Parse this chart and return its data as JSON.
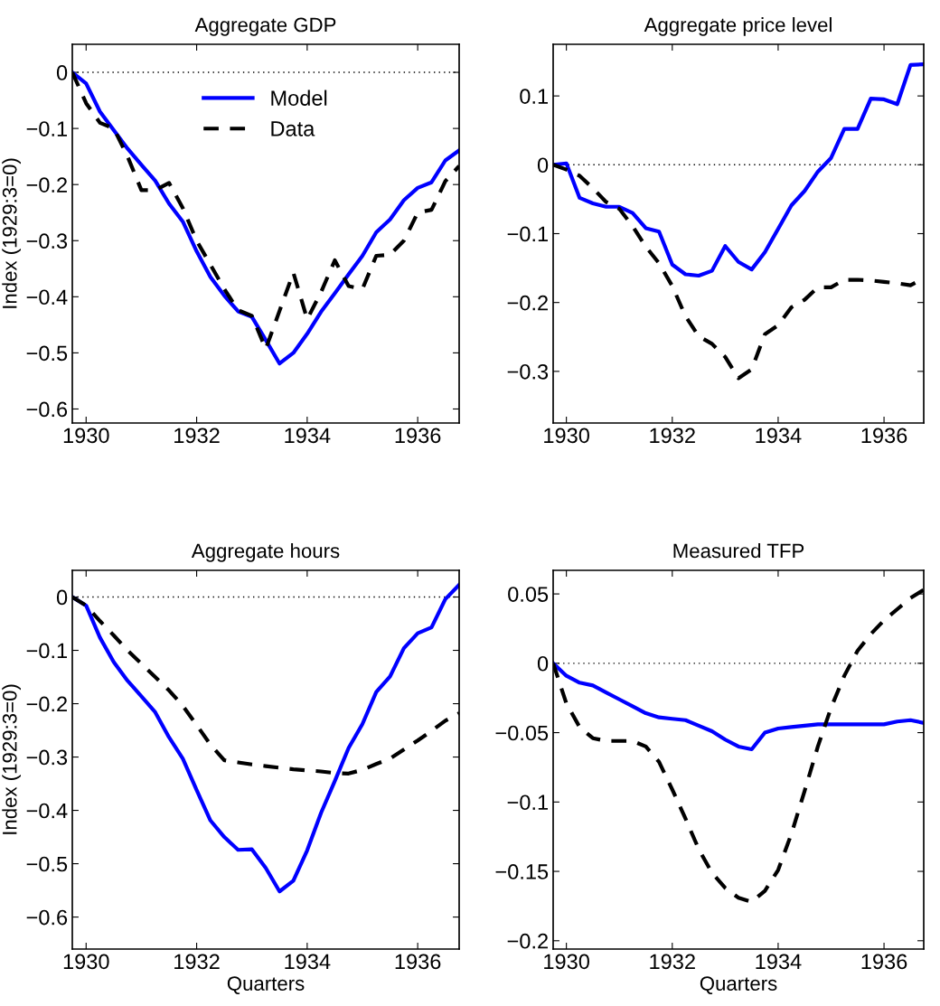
{
  "chart_data": [
    {
      "type": "line",
      "title": "Aggregate GDP",
      "ylabel": "Index (1929:3=0)",
      "x": [
        1929.75,
        1930,
        1930.25,
        1930.5,
        1930.75,
        1931,
        1931.25,
        1931.5,
        1931.75,
        1932,
        1932.25,
        1932.5,
        1932.75,
        1933,
        1933.25,
        1933.5,
        1933.75,
        1934,
        1934.25,
        1934.5,
        1934.75,
        1935,
        1935.25,
        1935.5,
        1935.75,
        1936,
        1936.25,
        1936.5,
        1936.75
      ],
      "series": [
        {
          "name": "Model",
          "color": "#0000ff",
          "line_style": "solid",
          "values": [
            0,
            -0.02,
            -0.07,
            -0.103,
            -0.136,
            -0.165,
            -0.193,
            -0.234,
            -0.266,
            -0.319,
            -0.365,
            -0.398,
            -0.426,
            -0.436,
            -0.477,
            -0.519,
            -0.5,
            -0.466,
            -0.427,
            -0.394,
            -0.36,
            -0.327,
            -0.285,
            -0.262,
            -0.228,
            -0.206,
            -0.196,
            -0.157,
            -0.139
          ]
        },
        {
          "name": "Data",
          "color": "#000000",
          "line_style": "dashed",
          "values": [
            0,
            -0.055,
            -0.09,
            -0.1,
            -0.15,
            -0.21,
            -0.21,
            -0.197,
            -0.242,
            -0.3,
            -0.343,
            -0.386,
            -0.424,
            -0.434,
            -0.493,
            -0.425,
            -0.357,
            -0.44,
            -0.392,
            -0.335,
            -0.381,
            -0.386,
            -0.327,
            -0.325,
            -0.3,
            -0.25,
            -0.245,
            -0.194,
            -0.167
          ]
        }
      ],
      "xlim": [
        1929.75,
        1936.75
      ],
      "xticks": [
        1930,
        1932,
        1934,
        1936
      ],
      "ylim": [
        -0.625,
        0.05
      ],
      "yticks": [
        -0.6,
        -0.5,
        -0.4,
        -0.3,
        -0.2,
        -0.1,
        0
      ],
      "ref_lines": [
        {
          "axis": "y",
          "value": 0,
          "color": "#000000",
          "line_style": "dotted"
        }
      ],
      "legend": "top",
      "grid": false
    },
    {
      "type": "line",
      "title": "Aggregate price level",
      "x": [
        1929.75,
        1930,
        1930.25,
        1930.5,
        1930.75,
        1931,
        1931.25,
        1931.5,
        1931.75,
        1932,
        1932.25,
        1932.5,
        1932.75,
        1933,
        1933.25,
        1933.5,
        1933.75,
        1934,
        1934.25,
        1934.5,
        1934.75,
        1935,
        1935.25,
        1935.5,
        1935.75,
        1936,
        1936.25,
        1936.5,
        1936.75
      ],
      "series": [
        {
          "color": "#0000ff",
          "line_style": "solid",
          "values": [
            0,
            0.002,
            -0.048,
            -0.056,
            -0.061,
            -0.061,
            -0.07,
            -0.092,
            -0.097,
            -0.145,
            -0.159,
            -0.161,
            -0.154,
            -0.118,
            -0.141,
            -0.152,
            -0.127,
            -0.093,
            -0.059,
            -0.038,
            -0.01,
            0.01,
            0.052,
            0.052,
            0.096,
            0.095,
            0.088,
            0.145,
            0.146
          ]
        },
        {
          "color": "#000000",
          "line_style": "dashed",
          "values": [
            0,
            -0.007,
            -0.016,
            -0.034,
            -0.054,
            -0.064,
            -0.089,
            -0.119,
            -0.143,
            -0.176,
            -0.22,
            -0.249,
            -0.26,
            -0.279,
            -0.31,
            -0.297,
            -0.246,
            -0.233,
            -0.207,
            -0.196,
            -0.178,
            -0.178,
            -0.167,
            -0.167,
            -0.168,
            -0.17,
            -0.172,
            -0.175,
            -0.165
          ]
        }
      ],
      "xlim": [
        1929.75,
        1936.75
      ],
      "xticks": [
        1930,
        1932,
        1934,
        1936
      ],
      "ylim": [
        -0.375,
        0.175
      ],
      "yticks": [
        -0.3,
        -0.2,
        -0.1,
        0,
        0.1
      ],
      "ref_lines": [
        {
          "axis": "y",
          "value": 0,
          "color": "#000000",
          "line_style": "dotted"
        }
      ],
      "grid": false
    },
    {
      "type": "line",
      "title": "Aggregate hours",
      "ylabel": "Index (1929:3=0)",
      "xlabel": "Quarters",
      "x": [
        1929.75,
        1930,
        1930.25,
        1930.5,
        1930.75,
        1931,
        1931.25,
        1931.5,
        1931.75,
        1932,
        1932.25,
        1932.5,
        1932.75,
        1933,
        1933.25,
        1933.5,
        1933.75,
        1934,
        1934.25,
        1934.5,
        1934.75,
        1935,
        1935.25,
        1935.5,
        1935.75,
        1936,
        1936.25,
        1936.5,
        1936.75
      ],
      "series": [
        {
          "color": "#0000ff",
          "line_style": "solid",
          "values": [
            0,
            -0.016,
            -0.076,
            -0.122,
            -0.157,
            -0.186,
            -0.216,
            -0.263,
            -0.303,
            -0.362,
            -0.419,
            -0.45,
            -0.474,
            -0.473,
            -0.508,
            -0.552,
            -0.532,
            -0.475,
            -0.405,
            -0.345,
            -0.283,
            -0.238,
            -0.178,
            -0.149,
            -0.096,
            -0.068,
            -0.057,
            -0.004,
            0.023
          ]
        },
        {
          "color": "#000000",
          "line_style": "dashed",
          "values": [
            0,
            -0.016,
            -0.045,
            -0.072,
            -0.1,
            -0.125,
            -0.15,
            -0.175,
            -0.204,
            -0.24,
            -0.277,
            -0.306,
            -0.31,
            -0.314,
            -0.317,
            -0.32,
            -0.323,
            -0.325,
            -0.327,
            -0.33,
            -0.331,
            -0.324,
            -0.313,
            -0.303,
            -0.286,
            -0.269,
            -0.251,
            -0.232,
            -0.218
          ]
        }
      ],
      "xlim": [
        1929.75,
        1936.75
      ],
      "xticks": [
        1930,
        1932,
        1934,
        1936
      ],
      "ylim": [
        -0.66,
        0.05
      ],
      "yticks": [
        -0.6,
        -0.5,
        -0.4,
        -0.3,
        -0.2,
        -0.1,
        0
      ],
      "ref_lines": [
        {
          "axis": "y",
          "value": 0,
          "color": "#000000",
          "line_style": "dotted"
        }
      ],
      "grid": false
    },
    {
      "type": "line",
      "title": "Measured TFP",
      "xlabel": "Quarters",
      "x": [
        1929.75,
        1930,
        1930.25,
        1930.5,
        1930.75,
        1931,
        1931.25,
        1931.5,
        1931.75,
        1932,
        1932.25,
        1932.5,
        1932.75,
        1933,
        1933.25,
        1933.5,
        1933.75,
        1934,
        1934.25,
        1934.5,
        1934.75,
        1935,
        1935.25,
        1935.5,
        1935.75,
        1936,
        1936.25,
        1936.5,
        1936.75
      ],
      "series": [
        {
          "color": "#0000ff",
          "line_style": "solid",
          "values": [
            0,
            -0.009,
            -0.014,
            -0.016,
            -0.021,
            -0.026,
            -0.031,
            -0.036,
            -0.039,
            -0.04,
            -0.041,
            -0.045,
            -0.049,
            -0.055,
            -0.06,
            -0.062,
            -0.05,
            -0.047,
            -0.046,
            -0.045,
            -0.044,
            -0.044,
            -0.044,
            -0.044,
            -0.044,
            -0.044,
            -0.042,
            -0.041,
            -0.043
          ]
        },
        {
          "color": "#000000",
          "line_style": "dashed",
          "values": [
            0,
            -0.029,
            -0.046,
            -0.054,
            -0.056,
            -0.056,
            -0.056,
            -0.06,
            -0.071,
            -0.091,
            -0.112,
            -0.134,
            -0.151,
            -0.162,
            -0.169,
            -0.172,
            -0.164,
            -0.149,
            -0.123,
            -0.092,
            -0.06,
            -0.032,
            -0.009,
            0.009,
            0.021,
            0.031,
            0.039,
            0.047,
            0.053
          ]
        }
      ],
      "xlim": [
        1929.75,
        1936.75
      ],
      "xticks": [
        1930,
        1932,
        1934,
        1936
      ],
      "ylim": [
        -0.206,
        0.067
      ],
      "yticks": [
        -0.2,
        -0.15,
        -0.1,
        -0.05,
        0,
        0.05
      ],
      "ref_lines": [
        {
          "axis": "y",
          "value": 0,
          "color": "#000000",
          "line_style": "dotted"
        }
      ],
      "grid": false
    }
  ]
}
